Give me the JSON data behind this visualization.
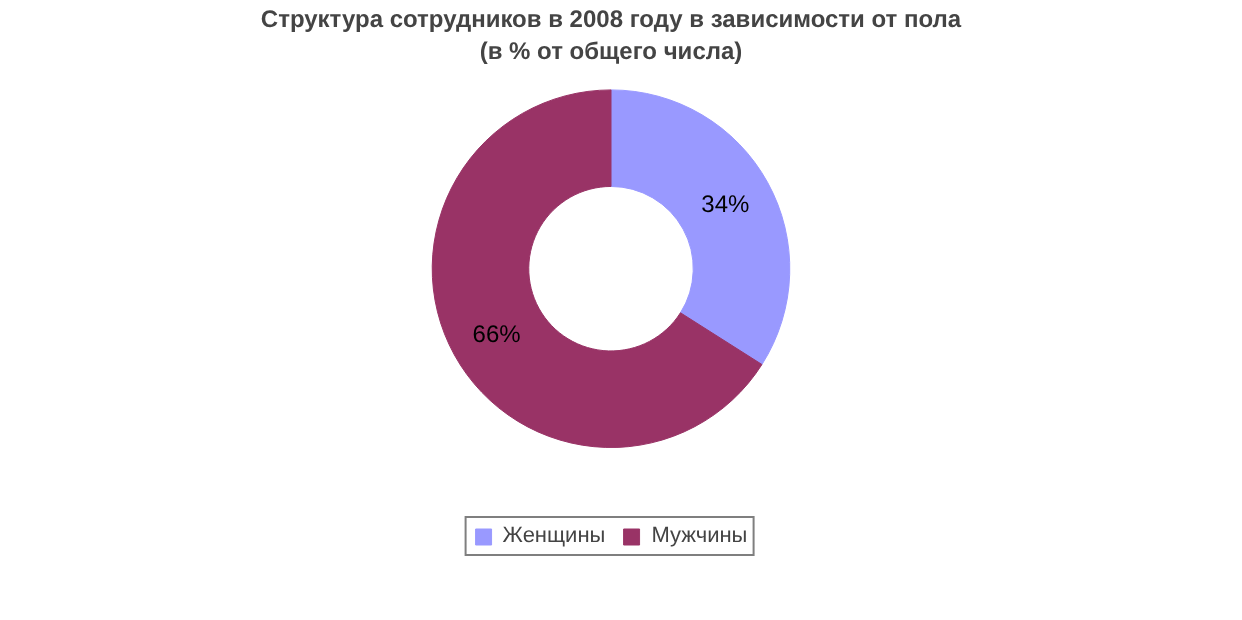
{
  "chart_data": {
    "type": "donut",
    "title": "Структура сотрудников в 2008 году в зависимости от пола",
    "subtitle": "(в % от общего числа)",
    "categories": [
      "Женщины",
      "Мужчины"
    ],
    "values": [
      34,
      66
    ],
    "colors": [
      "#9999ff",
      "#993366"
    ],
    "value_labels": [
      "34%",
      "66%"
    ],
    "legend": "bottom"
  }
}
